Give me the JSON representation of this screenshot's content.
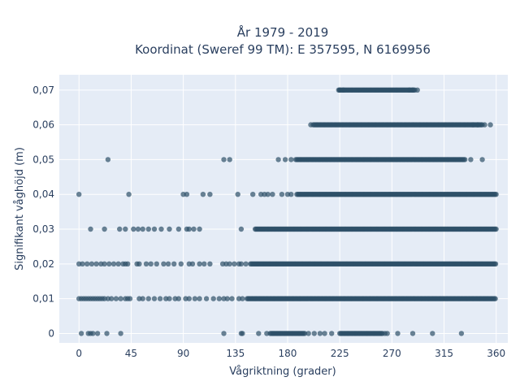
{
  "chart_data": {
    "type": "scatter",
    "title_lines": [
      "År 1979 - 2019",
      "Koordinat (Sweref 99 TM): E 357595, N 6169956"
    ],
    "xlabel": "Vågriktning (grader)",
    "ylabel": "Signifikant våghöjd (m)",
    "xlim": [
      -17,
      370
    ],
    "ylim": [
      -0.0027,
      0.0744
    ],
    "x_ticks": [
      0,
      45,
      90,
      135,
      180,
      225,
      270,
      315,
      360
    ],
    "y_ticks": [
      0,
      0.01,
      0.02,
      0.03,
      0.04,
      0.05,
      0.06,
      0.07
    ],
    "y_tick_labels": [
      "0",
      "0,01",
      "0,02",
      "0,03",
      "0,04",
      "0,05",
      "0,06",
      "0,07"
    ],
    "grid": true,
    "legend": "none",
    "marker_color": "#2e5068",
    "background_color": "#e5ecf6",
    "grid_color": "#ffffff",
    "points_by_height": [
      {
        "y": 0.07,
        "dense": [
          [
            224,
            290
          ]
        ],
        "sparse": [
          225,
          228,
          285,
          288,
          292
        ]
      },
      {
        "y": 0.06,
        "dense": [
          [
            203,
            348
          ]
        ],
        "sparse": [
          200,
          202,
          340,
          344,
          350,
          355
        ]
      },
      {
        "y": 0.05,
        "dense": [
          [
            188,
            332
          ]
        ],
        "sparse": [
          25,
          125,
          130,
          172,
          178,
          183,
          187,
          333,
          338,
          348
        ]
      },
      {
        "y": 0.04,
        "dense": [
          [
            188,
            360
          ]
        ],
        "sparse": [
          0,
          43,
          90,
          93,
          107,
          113,
          137,
          150,
          157,
          160,
          163,
          167,
          175,
          180,
          183
        ]
      },
      {
        "y": 0.03,
        "dense": [
          [
            152,
            360
          ]
        ],
        "sparse": [
          10,
          22,
          35,
          40,
          47,
          51,
          55,
          60,
          65,
          71,
          78,
          86,
          93,
          95,
          99,
          104,
          140
        ]
      },
      {
        "y": 0.02,
        "dense": [
          [
            148,
            360
          ]
        ],
        "sparse": [
          0,
          3,
          7,
          11,
          15,
          19,
          22,
          26,
          30,
          34,
          38,
          40,
          42,
          50,
          52,
          58,
          62,
          67,
          73,
          77,
          82,
          88,
          95,
          98,
          104,
          108,
          113,
          124,
          127,
          130,
          134,
          138,
          140,
          144
        ]
      },
      {
        "y": 0.01,
        "dense": [
          [
            145,
            360
          ]
        ],
        "sparse": [
          0,
          2,
          4,
          6,
          8,
          10,
          12,
          14,
          16,
          18,
          20,
          22,
          25,
          28,
          32,
          36,
          40,
          42,
          44,
          52,
          55,
          60,
          65,
          70,
          75,
          78,
          83,
          86,
          92,
          95,
          100,
          104,
          110,
          116,
          121,
          125,
          128,
          132,
          138,
          141
        ]
      },
      {
        "y": 0,
        "dense": [
          [
            165,
            195
          ],
          [
            225,
            262
          ]
        ],
        "sparse": [
          2,
          8,
          10,
          12,
          16,
          24,
          36,
          125,
          140,
          141,
          155,
          162,
          198,
          203,
          208,
          212,
          218,
          264,
          266,
          275,
          288,
          305,
          330
        ]
      }
    ]
  }
}
